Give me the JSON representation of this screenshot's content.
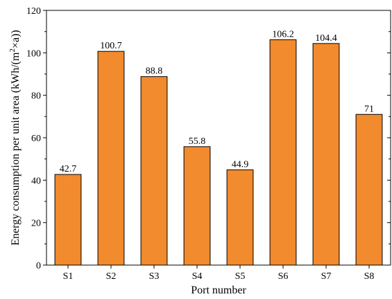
{
  "chart_data": {
    "type": "bar",
    "title": "",
    "xlabel": "Port number",
    "ylabel_main": "Energy consumption per unit area (kWh/(m",
    "ylabel_sup": "2",
    "ylabel_tail": "×a))",
    "categories": [
      "S1",
      "S2",
      "S3",
      "S4",
      "S5",
      "S6",
      "S7",
      "S8"
    ],
    "values": [
      42.7,
      100.7,
      88.8,
      55.8,
      44.9,
      106.2,
      104.4,
      71
    ],
    "value_labels": [
      "42.7",
      "100.7",
      "88.8",
      "55.8",
      "44.9",
      "106.2",
      "104.4",
      "71"
    ],
    "ylim": [
      0,
      120
    ],
    "yticks": [
      0,
      20,
      40,
      60,
      80,
      100,
      120
    ],
    "ytick_labels": [
      "0",
      "20",
      "40",
      "60",
      "80",
      "100",
      "120"
    ],
    "bar_color": "#F28A2E",
    "bar_edge_color": "#000000",
    "grid": false,
    "legend": "none"
  }
}
